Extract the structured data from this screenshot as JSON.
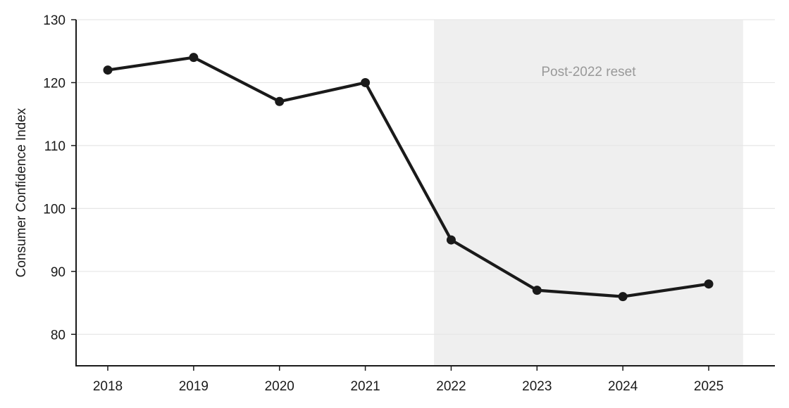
{
  "chart_data": {
    "type": "line",
    "title": "",
    "xlabel": "",
    "ylabel": "Consumer Confidence Index",
    "x": [
      "2018",
      "2019",
      "2020",
      "2021",
      "2022",
      "2023",
      "2024",
      "2025"
    ],
    "series": [
      {
        "values": [
          122,
          124,
          117,
          120,
          95,
          87,
          86,
          88
        ]
      }
    ],
    "ylim": [
      75,
      130
    ],
    "yticks": [
      80,
      90,
      100,
      110,
      120,
      130
    ],
    "grid": "horizontal",
    "legend": "none",
    "shaded_region": {
      "x_start": 2021.8,
      "x_end": 2025.4,
      "label": "Post-2022 reset"
    },
    "colors": {
      "line": "#1a1a1a",
      "grid": "#e6e6e6",
      "shade": "#efefef",
      "annotation_text": "#999999",
      "axis": "#1a1a1a"
    }
  }
}
